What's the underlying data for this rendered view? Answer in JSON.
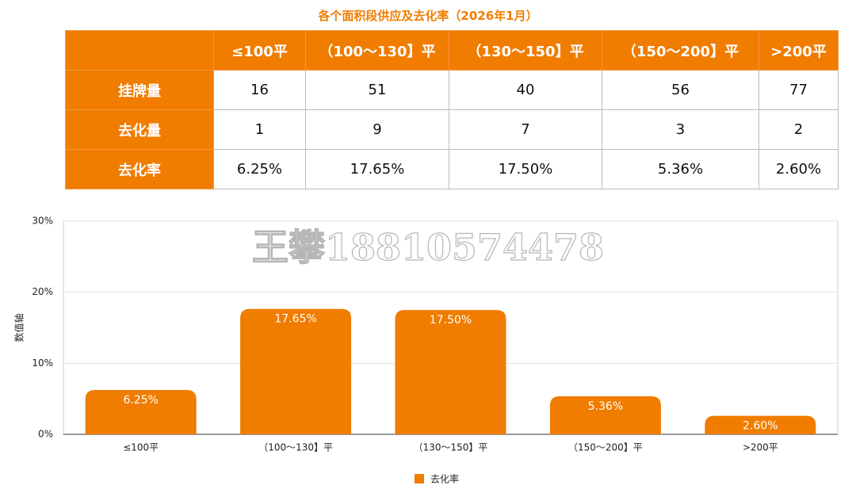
{
  "title": "各个面积段供应及去化率（2026年1月）",
  "table": {
    "header": [
      "≤100平",
      "（100～130】平",
      "（130～150】平",
      "（150～200】平",
      ">200平"
    ],
    "rows": [
      [
        "挂牌量",
        "16",
        "51",
        "40",
        "56",
        "77"
      ],
      [
        "去化量",
        "1",
        "9",
        "7",
        "3",
        "2"
      ],
      [
        "去化率",
        "6.25%",
        "17.65%",
        "17.50%",
        "5.36%",
        "2.60%"
      ]
    ]
  },
  "watermark": "王攀18810574478",
  "chart_data": {
    "type": "bar",
    "categories": [
      "≤100平",
      "（100～130】平",
      "（130～150】平",
      "（150～200】平",
      ">200平"
    ],
    "series": [
      {
        "name": "去化率",
        "color": "#f07c00",
        "values": [
          6.25,
          17.65,
          17.5,
          5.36,
          2.6
        ],
        "value_labels": [
          "6.25%",
          "17.65%",
          "17.50%",
          "5.36%",
          "2.60%"
        ]
      }
    ],
    "ylabel": "数值轴",
    "ylim": [
      0,
      30
    ],
    "yticks": [
      {
        "value": 0,
        "label": "0%"
      },
      {
        "value": 10,
        "label": "10%"
      },
      {
        "value": 20,
        "label": "20%"
      },
      {
        "value": 30,
        "label": "30%"
      }
    ],
    "grid": true,
    "legend": "bottom"
  }
}
